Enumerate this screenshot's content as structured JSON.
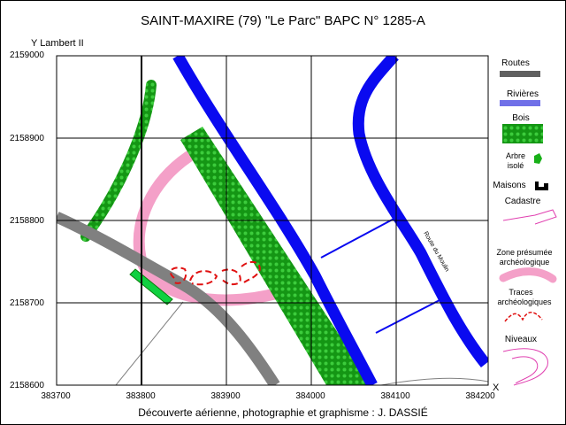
{
  "title": "SAINT-MAXIRE   (79)  \"Le Parc\"    BAPC N° 1285-A",
  "y_axis_label": "Y  Lambert II",
  "credit": "Découverte aérienne, photographie et graphisme : J. DASSIÉ",
  "y_ticks": [
    "2159000",
    "2158900",
    "2158800",
    "2158700",
    "2158600"
  ],
  "x_ticks": [
    "383700",
    "383800",
    "383900",
    "384000",
    "384100",
    "384200"
  ],
  "road_label": "Route du Moulin",
  "corner_marker": "X",
  "legend": {
    "routes": "Routes",
    "rivieres": "Rivières",
    "bois": "Bois",
    "arbre_line1": "Arbre",
    "arbre_line2": "isolé",
    "maisons": "Maisons",
    "cadastre": "Cadastre",
    "zone_line1": "Zone présumée",
    "zone_line2": "archéologique",
    "traces_line1": "Traces",
    "traces_line2": "archéologiques",
    "niveaux": "Niveaux"
  },
  "colors": {
    "route": "#808080",
    "river": "#0a0af0",
    "bois": "#149614",
    "bois_dot": "#3ccc3c",
    "zone": "#f4a0c8",
    "traces": "#e01010",
    "cadastre": "#e040b0",
    "grid": "#000000"
  }
}
